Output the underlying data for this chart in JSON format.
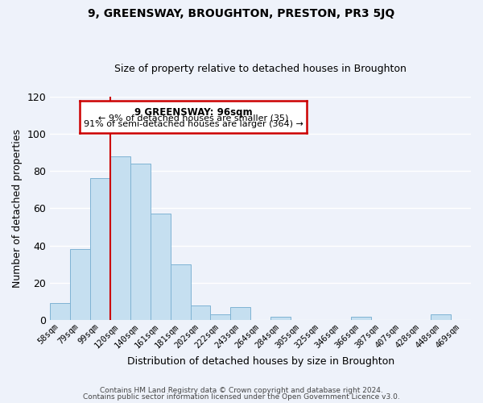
{
  "title": "9, GREENSWAY, BROUGHTON, PRESTON, PR3 5JQ",
  "subtitle": "Size of property relative to detached houses in Broughton",
  "xlabel": "Distribution of detached houses by size in Broughton",
  "ylabel": "Number of detached properties",
  "bar_labels": [
    "58sqm",
    "79sqm",
    "99sqm",
    "120sqm",
    "140sqm",
    "161sqm",
    "181sqm",
    "202sqm",
    "222sqm",
    "243sqm",
    "264sqm",
    "284sqm",
    "305sqm",
    "325sqm",
    "346sqm",
    "366sqm",
    "387sqm",
    "407sqm",
    "428sqm",
    "448sqm",
    "469sqm"
  ],
  "bar_values": [
    9,
    38,
    76,
    88,
    84,
    57,
    30,
    8,
    3,
    7,
    0,
    2,
    0,
    0,
    0,
    2,
    0,
    0,
    0,
    3,
    0
  ],
  "bar_color": "#c5dff0",
  "bar_edge_color": "#7fb3d3",
  "vline_index": 2,
  "vline_color": "#cc0000",
  "ylim": [
    0,
    120
  ],
  "yticks": [
    0,
    20,
    40,
    60,
    80,
    100,
    120
  ],
  "annotation_title": "9 GREENSWAY: 96sqm",
  "annotation_line1": "← 9% of detached houses are smaller (35)",
  "annotation_line2": "91% of semi-detached houses are larger (364) →",
  "annotation_box_facecolor": "#ffffff",
  "annotation_box_edgecolor": "#cc0000",
  "footer1": "Contains HM Land Registry data © Crown copyright and database right 2024.",
  "footer2": "Contains public sector information licensed under the Open Government Licence v3.0.",
  "background_color": "#eef2fa",
  "grid_color": "#ffffff",
  "tick_label_fontsize": 7.5,
  "title_fontsize": 10,
  "subtitle_fontsize": 9
}
